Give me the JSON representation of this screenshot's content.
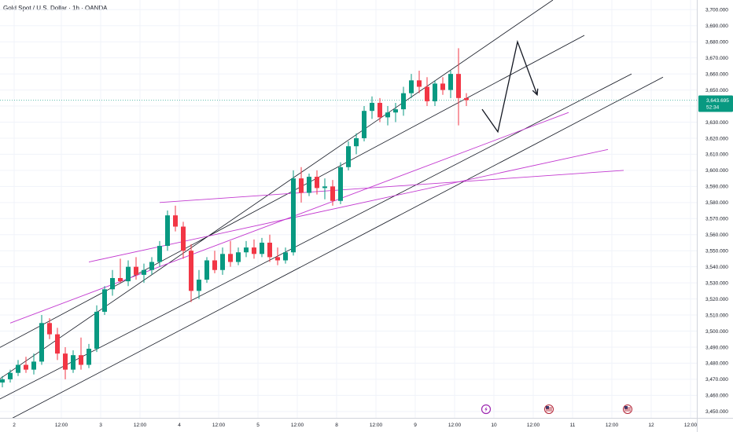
{
  "chart_data": {
    "type": "candlestick",
    "title": "Gold Spot / U.S. Dollar · 1h · OANDA",
    "ylim": [
      3446,
      3706
    ],
    "y_ticks": [
      3450,
      3460,
      3470,
      3480,
      3490,
      3500,
      3510,
      3520,
      3530,
      3540,
      3550,
      3560,
      3570,
      3580,
      3590,
      3600,
      3610,
      3620,
      3630,
      3640,
      3650,
      3660,
      3670,
      3680,
      3690,
      3700
    ],
    "y_tick_labels": [
      "3,450.000",
      "3,460.000",
      "3,470.000",
      "3,480.000",
      "3,490.000",
      "3,500.000",
      "3,510.000",
      "3,520.000",
      "3,530.000",
      "3,540.000",
      "3,550.000",
      "3,560.000",
      "3,570.000",
      "3,580.000",
      "3,590.000",
      "3,600.000",
      "3,610.000",
      "3,620.000",
      "3,630.000",
      "3,640.000",
      "3,650.000",
      "3,660.000",
      "3,670.000",
      "3,680.000",
      "3,690.000",
      "3,700.000"
    ],
    "x_ticks": [
      {
        "label": "2",
        "x": 1.5
      },
      {
        "label": "12:00",
        "x": 7.5
      },
      {
        "label": "3",
        "x": 12.5
      },
      {
        "label": "12:00",
        "x": 17.5
      },
      {
        "label": "4",
        "x": 22.5
      },
      {
        "label": "12:00",
        "x": 27.5
      },
      {
        "label": "5",
        "x": 32.5
      },
      {
        "label": "12:00",
        "x": 37.5
      },
      {
        "label": "8",
        "x": 42.5
      },
      {
        "label": "12:00",
        "x": 47.5
      },
      {
        "label": "9",
        "x": 52.5
      },
      {
        "label": "12:00",
        "x": 57.5
      },
      {
        "label": "10",
        "x": 62.5
      },
      {
        "label": "12:00",
        "x": 67.5
      },
      {
        "label": "11",
        "x": 72.5
      },
      {
        "label": "12:00",
        "x": 77.5
      },
      {
        "label": "12",
        "x": 82.5
      },
      {
        "label": "12:00",
        "x": 87.5
      }
    ],
    "price_badge": {
      "price": 3643.695,
      "price_label": "3,643.695",
      "countdown": "52:34"
    },
    "candles": [
      {
        "o": 3468,
        "h": 3472,
        "l": 3465,
        "c": 3470
      },
      {
        "o": 3470,
        "h": 3476,
        "l": 3468,
        "c": 3474
      },
      {
        "o": 3474,
        "h": 3482,
        "l": 3472,
        "c": 3479
      },
      {
        "o": 3479,
        "h": 3484,
        "l": 3474,
        "c": 3476
      },
      {
        "o": 3476,
        "h": 3486,
        "l": 3473,
        "c": 3481
      },
      {
        "o": 3481,
        "h": 3510,
        "l": 3479,
        "c": 3505
      },
      {
        "o": 3505,
        "h": 3508,
        "l": 3495,
        "c": 3498
      },
      {
        "o": 3498,
        "h": 3502,
        "l": 3482,
        "c": 3486
      },
      {
        "o": 3486,
        "h": 3490,
        "l": 3470,
        "c": 3476
      },
      {
        "o": 3476,
        "h": 3488,
        "l": 3474,
        "c": 3485
      },
      {
        "o": 3485,
        "h": 3496,
        "l": 3476,
        "c": 3479
      },
      {
        "o": 3479,
        "h": 3492,
        "l": 3477,
        "c": 3489
      },
      {
        "o": 3489,
        "h": 3516,
        "l": 3487,
        "c": 3512
      },
      {
        "o": 3512,
        "h": 3528,
        "l": 3510,
        "c": 3526
      },
      {
        "o": 3526,
        "h": 3538,
        "l": 3522,
        "c": 3533
      },
      {
        "o": 3533,
        "h": 3545,
        "l": 3530,
        "c": 3531
      },
      {
        "o": 3531,
        "h": 3544,
        "l": 3528,
        "c": 3540
      },
      {
        "o": 3540,
        "h": 3546,
        "l": 3532,
        "c": 3535
      },
      {
        "o": 3535,
        "h": 3542,
        "l": 3530,
        "c": 3538
      },
      {
        "o": 3538,
        "h": 3546,
        "l": 3535,
        "c": 3543
      },
      {
        "o": 3543,
        "h": 3556,
        "l": 3540,
        "c": 3553
      },
      {
        "o": 3553,
        "h": 3575,
        "l": 3550,
        "c": 3572
      },
      {
        "o": 3572,
        "h": 3578,
        "l": 3562,
        "c": 3565
      },
      {
        "o": 3565,
        "h": 3568,
        "l": 3545,
        "c": 3550
      },
      {
        "o": 3550,
        "h": 3554,
        "l": 3518,
        "c": 3525
      },
      {
        "o": 3525,
        "h": 3538,
        "l": 3520,
        "c": 3532
      },
      {
        "o": 3532,
        "h": 3546,
        "l": 3530,
        "c": 3544
      },
      {
        "o": 3544,
        "h": 3550,
        "l": 3536,
        "c": 3538
      },
      {
        "o": 3538,
        "h": 3552,
        "l": 3535,
        "c": 3548
      },
      {
        "o": 3548,
        "h": 3556,
        "l": 3540,
        "c": 3543
      },
      {
        "o": 3543,
        "h": 3552,
        "l": 3541,
        "c": 3549
      },
      {
        "o": 3549,
        "h": 3556,
        "l": 3546,
        "c": 3552
      },
      {
        "o": 3552,
        "h": 3557,
        "l": 3545,
        "c": 3548
      },
      {
        "o": 3548,
        "h": 3558,
        "l": 3546,
        "c": 3555
      },
      {
        "o": 3555,
        "h": 3560,
        "l": 3543,
        "c": 3546
      },
      {
        "o": 3546,
        "h": 3552,
        "l": 3541,
        "c": 3544
      },
      {
        "o": 3544,
        "h": 3552,
        "l": 3542,
        "c": 3549
      },
      {
        "o": 3549,
        "h": 3600,
        "l": 3547,
        "c": 3595
      },
      {
        "o": 3595,
        "h": 3602,
        "l": 3580,
        "c": 3586
      },
      {
        "o": 3586,
        "h": 3598,
        "l": 3584,
        "c": 3596
      },
      {
        "o": 3596,
        "h": 3600,
        "l": 3585,
        "c": 3589
      },
      {
        "o": 3589,
        "h": 3595,
        "l": 3582,
        "c": 3590
      },
      {
        "o": 3590,
        "h": 3594,
        "l": 3578,
        "c": 3581
      },
      {
        "o": 3581,
        "h": 3605,
        "l": 3579,
        "c": 3602
      },
      {
        "o": 3602,
        "h": 3618,
        "l": 3600,
        "c": 3615
      },
      {
        "o": 3615,
        "h": 3623,
        "l": 3610,
        "c": 3620
      },
      {
        "o": 3620,
        "h": 3640,
        "l": 3618,
        "c": 3637
      },
      {
        "o": 3637,
        "h": 3646,
        "l": 3632,
        "c": 3642
      },
      {
        "o": 3642,
        "h": 3645,
        "l": 3630,
        "c": 3633
      },
      {
        "o": 3633,
        "h": 3640,
        "l": 3628,
        "c": 3636
      },
      {
        "o": 3636,
        "h": 3642,
        "l": 3630,
        "c": 3638
      },
      {
        "o": 3638,
        "h": 3652,
        "l": 3634,
        "c": 3648
      },
      {
        "o": 3648,
        "h": 3660,
        "l": 3645,
        "c": 3656
      },
      {
        "o": 3656,
        "h": 3662,
        "l": 3648,
        "c": 3652
      },
      {
        "o": 3652,
        "h": 3658,
        "l": 3640,
        "c": 3643
      },
      {
        "o": 3643,
        "h": 3656,
        "l": 3640,
        "c": 3654
      },
      {
        "o": 3654,
        "h": 3658,
        "l": 3647,
        "c": 3650
      },
      {
        "o": 3650,
        "h": 3662,
        "l": 3645,
        "c": 3660
      },
      {
        "o": 3660,
        "h": 3676,
        "l": 3628,
        "c": 3645
      },
      {
        "o": 3645,
        "h": 3648,
        "l": 3640,
        "c": 3643.7
      }
    ],
    "colors": {
      "up": "#089981",
      "down": "#f23645",
      "channel": "#131722",
      "fan": "#c33ad0",
      "badge": "#089981",
      "grid": "#f0f3fa",
      "axis_text": "#131722"
    },
    "channel_lines": [
      {
        "x1": -1,
        "y1": 3468,
        "x2": 70,
        "y2": 3706
      },
      {
        "x1": -1,
        "y1": 3488,
        "x2": 74,
        "y2": 3684
      },
      {
        "x1": -1,
        "y1": 3456,
        "x2": 80,
        "y2": 3660
      },
      {
        "x1": -1,
        "y1": 3440,
        "x2": 84,
        "y2": 3658
      }
    ],
    "fan_lines": [
      {
        "x1": 1,
        "y1": 3505,
        "x2": 72,
        "y2": 3636
      },
      {
        "x1": 11,
        "y1": 3543,
        "x2": 77,
        "y2": 3613
      },
      {
        "x1": 20,
        "y1": 3580,
        "x2": 79,
        "y2": 3600
      }
    ],
    "projection_path": [
      {
        "x": 61,
        "y": 3638
      },
      {
        "x": 63,
        "y": 3624
      },
      {
        "x": 65.5,
        "y": 3680
      },
      {
        "x": 68,
        "y": 3647
      }
    ],
    "event_markers": [
      {
        "name": "lightning-event",
        "x": 61.5
      },
      {
        "name": "us-event",
        "x": 69.5
      },
      {
        "name": "us-event",
        "x": 79.5
      }
    ]
  }
}
